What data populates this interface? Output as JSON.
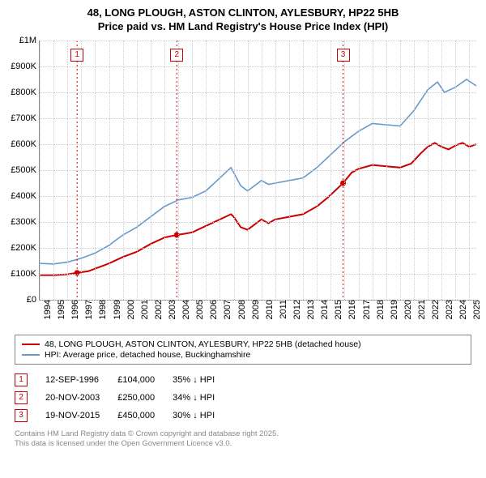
{
  "title_line1": "48, LONG PLOUGH, ASTON CLINTON, AYLESBURY, HP22 5HB",
  "title_line2": "Price paid vs. HM Land Registry's House Price Index (HPI)",
  "chart": {
    "type": "line",
    "background_color": "#ffffff",
    "grid_color": "#cccccc",
    "axis_color": "#888888",
    "x_start": 1994,
    "x_end": 2025.5,
    "y_start": 0,
    "y_end": 1000000,
    "y_ticks": [
      0,
      100000,
      200000,
      300000,
      400000,
      500000,
      600000,
      700000,
      800000,
      900000,
      1000000
    ],
    "y_labels": [
      "£0",
      "£100K",
      "£200K",
      "£300K",
      "£400K",
      "£500K",
      "£600K",
      "£700K",
      "£800K",
      "£900K",
      "£1M"
    ],
    "x_ticks": [
      1994,
      1995,
      1996,
      1997,
      1998,
      1999,
      2000,
      2001,
      2002,
      2003,
      2004,
      2005,
      2006,
      2007,
      2008,
      2009,
      2010,
      2011,
      2012,
      2013,
      2014,
      2015,
      2016,
      2017,
      2018,
      2019,
      2020,
      2021,
      2022,
      2023,
      2024,
      2025
    ],
    "series": [
      {
        "id": "property",
        "color": "#cc0000",
        "width": 2,
        "data": [
          [
            1994,
            95000
          ],
          [
            1995,
            95000
          ],
          [
            1996,
            98000
          ],
          [
            1996.7,
            104000
          ],
          [
            1997.5,
            110000
          ],
          [
            1998,
            120000
          ],
          [
            1999,
            140000
          ],
          [
            2000,
            165000
          ],
          [
            2001,
            185000
          ],
          [
            2002,
            215000
          ],
          [
            2003,
            240000
          ],
          [
            2003.89,
            250000
          ],
          [
            2004.5,
            255000
          ],
          [
            2005,
            260000
          ],
          [
            2006,
            285000
          ],
          [
            2007,
            310000
          ],
          [
            2007.8,
            330000
          ],
          [
            2008,
            320000
          ],
          [
            2008.5,
            280000
          ],
          [
            2009,
            270000
          ],
          [
            2009.5,
            290000
          ],
          [
            2010,
            310000
          ],
          [
            2010.5,
            295000
          ],
          [
            2011,
            310000
          ],
          [
            2012,
            320000
          ],
          [
            2013,
            330000
          ],
          [
            2014,
            360000
          ],
          [
            2014.8,
            395000
          ],
          [
            2015.3,
            420000
          ],
          [
            2015.89,
            450000
          ],
          [
            2016.5,
            490000
          ],
          [
            2017,
            505000
          ],
          [
            2018,
            520000
          ],
          [
            2019,
            515000
          ],
          [
            2020,
            510000
          ],
          [
            2020.8,
            525000
          ],
          [
            2021.5,
            565000
          ],
          [
            2022,
            590000
          ],
          [
            2022.5,
            605000
          ],
          [
            2023,
            590000
          ],
          [
            2023.5,
            580000
          ],
          [
            2024,
            595000
          ],
          [
            2024.5,
            605000
          ],
          [
            2025,
            590000
          ],
          [
            2025.5,
            600000
          ]
        ]
      },
      {
        "id": "hpi",
        "color": "#6699cc",
        "width": 1.6,
        "data": [
          [
            1994,
            140000
          ],
          [
            1995,
            138000
          ],
          [
            1996,
            145000
          ],
          [
            1997,
            160000
          ],
          [
            1998,
            180000
          ],
          [
            1999,
            210000
          ],
          [
            2000,
            250000
          ],
          [
            2001,
            280000
          ],
          [
            2002,
            320000
          ],
          [
            2003,
            360000
          ],
          [
            2004,
            385000
          ],
          [
            2005,
            395000
          ],
          [
            2006,
            420000
          ],
          [
            2007,
            470000
          ],
          [
            2007.8,
            510000
          ],
          [
            2008.5,
            440000
          ],
          [
            2009,
            420000
          ],
          [
            2010,
            460000
          ],
          [
            2010.5,
            445000
          ],
          [
            2011,
            450000
          ],
          [
            2012,
            460000
          ],
          [
            2013,
            470000
          ],
          [
            2014,
            510000
          ],
          [
            2015,
            560000
          ],
          [
            2016,
            610000
          ],
          [
            2017,
            650000
          ],
          [
            2018,
            680000
          ],
          [
            2019,
            675000
          ],
          [
            2020,
            670000
          ],
          [
            2021,
            730000
          ],
          [
            2022,
            810000
          ],
          [
            2022.7,
            840000
          ],
          [
            2023.2,
            800000
          ],
          [
            2024,
            820000
          ],
          [
            2024.8,
            850000
          ],
          [
            2025.5,
            825000
          ]
        ]
      }
    ],
    "sale_markers": [
      {
        "n": "1",
        "x": 1996.7,
        "y": 104000,
        "color": "#cc0000"
      },
      {
        "n": "2",
        "x": 2003.89,
        "y": 250000,
        "color": "#cc0000"
      },
      {
        "n": "3",
        "x": 2015.89,
        "y": 450000,
        "color": "#cc0000"
      }
    ]
  },
  "legend": {
    "items": [
      {
        "color": "#cc0000",
        "label": "48, LONG PLOUGH, ASTON CLINTON, AYLESBURY, HP22 5HB (detached house)"
      },
      {
        "color": "#6699cc",
        "label": "HPI: Average price, detached house, Buckinghamshire"
      }
    ]
  },
  "sales": [
    {
      "n": "1",
      "color": "#cc0000",
      "date": "12-SEP-1996",
      "price": "£104,000",
      "delta": "35% ↓ HPI"
    },
    {
      "n": "2",
      "color": "#cc0000",
      "date": "20-NOV-2003",
      "price": "£250,000",
      "delta": "34% ↓ HPI"
    },
    {
      "n": "3",
      "color": "#cc0000",
      "date": "19-NOV-2015",
      "price": "£450,000",
      "delta": "30% ↓ HPI"
    }
  ],
  "footer_line1": "Contains HM Land Registry data © Crown copyright and database right 2025.",
  "footer_line2": "This data is licensed under the Open Government Licence v3.0."
}
